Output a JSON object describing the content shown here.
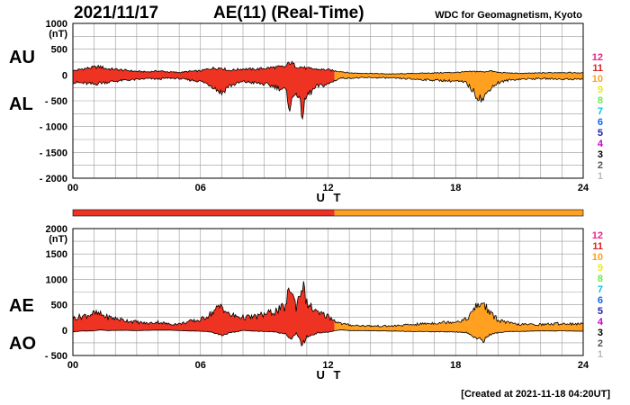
{
  "header": {
    "date": "2021/11/17",
    "title": "AE(11) (Real-Time)",
    "source": "WDC for Geomagnetism, Kyoto"
  },
  "footer": {
    "created": "[Created at 2021-11-18 04:20UT]"
  },
  "colors": {
    "early": "#ee3322",
    "late": "#ffa020",
    "grid": "#999999",
    "legend": [
      "#bbbbbb",
      "#555555",
      "#000000",
      "#cc00cc",
      "#2222aa",
      "#1166ee",
      "#00c8e0",
      "#66ee44",
      "#eeee00",
      "#ffa020",
      "#dd2222",
      "#ee2288"
    ]
  },
  "chart_data": [
    {
      "type": "area",
      "name": "AU-AL",
      "upper_label": "AU",
      "lower_label": "AL",
      "unit": "(nT)",
      "title": "AE(11) (Real-Time)",
      "xlabel": "U T",
      "xlim": [
        0,
        24
      ],
      "ylim": [
        -2000,
        1000
      ],
      "x_ticks": [
        "00",
        "06",
        "12",
        "18",
        "24"
      ],
      "y_ticks": [
        "1000",
        "500",
        "0",
        "- 500",
        "- 1000",
        "- 1500",
        "- 2000"
      ],
      "y_tick_values": [
        1000,
        500,
        0,
        -500,
        -1000,
        -1500,
        -2000
      ],
      "color_switch_hour": 12.3,
      "upper_series": {
        "name": "AU",
        "x": [
          0,
          0.5,
          1,
          1.3,
          1.6,
          2,
          2.5,
          3,
          3.5,
          4,
          4.5,
          5,
          5.5,
          6,
          6.5,
          7,
          7.3,
          7.6,
          8,
          8.5,
          9,
          9.5,
          10,
          10.2,
          10.5,
          10.8,
          11,
          11.5,
          12,
          12.3,
          12.6,
          13,
          14,
          15,
          16,
          17,
          18,
          18.5,
          19,
          19.3,
          19.6,
          20,
          20.5,
          21,
          22,
          23,
          24
        ],
        "values": [
          80,
          120,
          150,
          160,
          120,
          110,
          90,
          70,
          60,
          80,
          60,
          50,
          70,
          80,
          130,
          140,
          90,
          100,
          120,
          110,
          130,
          150,
          160,
          250,
          170,
          150,
          130,
          110,
          100,
          80,
          70,
          40,
          30,
          20,
          30,
          40,
          50,
          60,
          70,
          60,
          80,
          50,
          40,
          30,
          40,
          50,
          40
        ]
      },
      "lower_series": {
        "name": "AL",
        "x": [
          0,
          0.5,
          1,
          1.3,
          1.6,
          2,
          2.5,
          3,
          3.5,
          4,
          4.5,
          5,
          5.5,
          6,
          6.5,
          7,
          7.3,
          7.6,
          8,
          8.5,
          9,
          9.5,
          10,
          10.2,
          10.5,
          10.8,
          11,
          11.5,
          12,
          12.3,
          12.6,
          13,
          14,
          15,
          16,
          17,
          18,
          18.5,
          19,
          19.3,
          19.6,
          20,
          20.5,
          21,
          22,
          23,
          24
        ],
        "values": [
          -140,
          -160,
          -180,
          -150,
          -140,
          -120,
          -100,
          -90,
          -70,
          -80,
          -60,
          -70,
          -100,
          -120,
          -200,
          -350,
          -220,
          -180,
          -130,
          -150,
          -180,
          -220,
          -300,
          -620,
          -300,
          -760,
          -400,
          -220,
          -180,
          -110,
          -60,
          -60,
          -50,
          -60,
          -80,
          -100,
          -120,
          -150,
          -400,
          -480,
          -260,
          -150,
          -100,
          -80,
          -70,
          -80,
          -80
        ]
      }
    },
    {
      "type": "area",
      "name": "AE-AO",
      "upper_label": "AE",
      "lower_label": "AO",
      "unit": "(nT)",
      "xlabel": "U T",
      "xlim": [
        0,
        24
      ],
      "ylim": [
        -500,
        2000
      ],
      "x_ticks": [
        "00",
        "06",
        "12",
        "18",
        "24"
      ],
      "y_ticks": [
        "2000",
        "1500",
        "1000",
        "500",
        "0",
        "- 500"
      ],
      "y_tick_values": [
        2000,
        1500,
        1000,
        500,
        0,
        -500
      ],
      "color_switch_hour": 12.3,
      "upper_series": {
        "name": "AE",
        "x": [
          0,
          0.5,
          1,
          1.3,
          1.6,
          2,
          2.5,
          3,
          3.5,
          4,
          4.5,
          5,
          5.5,
          6,
          6.5,
          7,
          7.3,
          7.6,
          8,
          8.5,
          9,
          9.5,
          10,
          10.2,
          10.5,
          10.8,
          11,
          11.5,
          12,
          12.3,
          12.6,
          13,
          14,
          15,
          16,
          17,
          18,
          18.5,
          19,
          19.3,
          19.6,
          20,
          20.5,
          21,
          22,
          23,
          24
        ],
        "values": [
          230,
          280,
          330,
          310,
          260,
          230,
          190,
          160,
          130,
          160,
          120,
          120,
          170,
          200,
          330,
          490,
          310,
          280,
          250,
          260,
          310,
          370,
          460,
          870,
          470,
          910,
          530,
          330,
          280,
          190,
          130,
          100,
          80,
          80,
          110,
          140,
          170,
          210,
          470,
          540,
          340,
          200,
          140,
          110,
          110,
          130,
          120
        ]
      },
      "lower_series": {
        "name": "AO",
        "x": [
          0,
          0.5,
          1,
          1.3,
          1.6,
          2,
          2.5,
          3,
          3.5,
          4,
          4.5,
          5,
          5.5,
          6,
          6.5,
          7,
          7.3,
          7.6,
          8,
          8.5,
          9,
          9.5,
          10,
          10.2,
          10.5,
          10.8,
          11,
          11.5,
          12,
          12.3,
          12.6,
          13,
          14,
          15,
          16,
          17,
          18,
          18.5,
          19,
          19.3,
          19.6,
          20,
          20.5,
          21,
          22,
          23,
          24
        ],
        "values": [
          -30,
          -20,
          -15,
          5,
          -10,
          -5,
          -5,
          -10,
          -5,
          0,
          0,
          -10,
          -15,
          -20,
          -35,
          -100,
          -65,
          -40,
          -5,
          -20,
          -25,
          -35,
          -70,
          -190,
          -65,
          -300,
          -135,
          -55,
          -40,
          -15,
          5,
          -10,
          -10,
          -20,
          -25,
          -30,
          -35,
          -45,
          -165,
          -210,
          -90,
          -50,
          -30,
          -25,
          -15,
          -15,
          -20
        ]
      }
    }
  ],
  "legend_levels": [
    "12",
    "11",
    "10",
    "9",
    "8",
    "7",
    "6",
    "5",
    "4",
    "3",
    "2",
    "1"
  ],
  "station_bar": {
    "switch_hour": 12.3
  }
}
